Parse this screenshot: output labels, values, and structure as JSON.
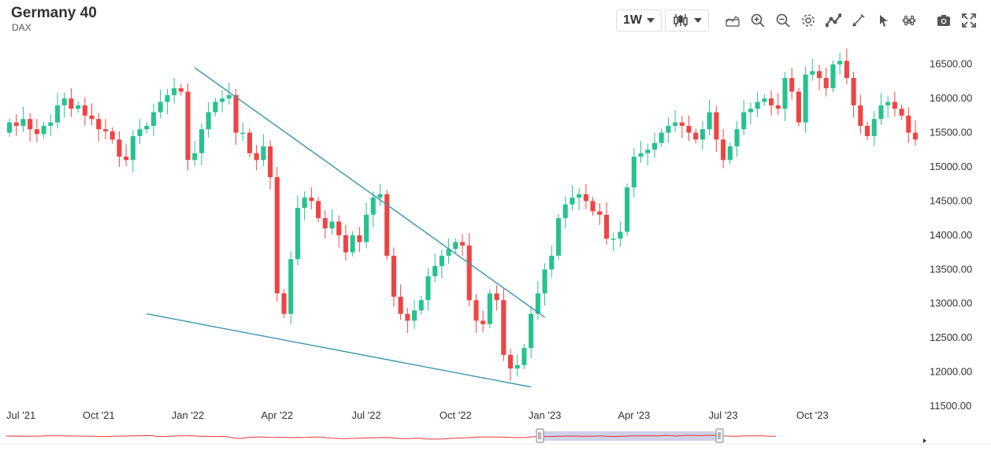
{
  "header": {
    "title": "Germany 40",
    "subtitle": "DAX"
  },
  "toolbar": {
    "interval_label": "1W",
    "chart_type_icon": "candlestick-icon",
    "icons": [
      "area-chart-icon",
      "zoom-in-icon",
      "zoom-out-icon",
      "gear-icon",
      "line-tool-icon",
      "pencil-icon",
      "cursor-icon",
      "network-icon",
      "camera-icon",
      "fullscreen-icon"
    ]
  },
  "colors": {
    "up": "#26c28f",
    "down": "#ef4444",
    "trendline": "#3a94b0",
    "navigator_line": "#e33",
    "navigator_fill": "#c7cde8"
  },
  "chart_data": {
    "type": "candlestick",
    "title": "",
    "xlabel": "",
    "ylabel": "",
    "y_ticks": [
      "11500.00",
      "12000.00",
      "12500.00",
      "13000.00",
      "13500.00",
      "14000.00",
      "14500.00",
      "15000.00",
      "15500.00",
      "16000.00",
      "16500.00"
    ],
    "ylim": [
      11500,
      16750
    ],
    "x_ticks": [
      "Jul '21",
      "Oct '21",
      "Jan '22",
      "Apr '22",
      "Jul '22",
      "Oct '22",
      "Jan '23",
      "Apr '23",
      "Jul '23",
      "Oct '23"
    ],
    "x_tick_weeks": [
      0,
      13,
      26,
      39,
      52,
      65,
      78,
      91,
      104,
      117
    ],
    "grid": false,
    "candles_close": [
      15650,
      15600,
      15700,
      15550,
      15480,
      15600,
      15650,
      15900,
      16000,
      15850,
      15900,
      15750,
      15700,
      15550,
      15520,
      15400,
      15150,
      15100,
      15450,
      15550,
      15600,
      15800,
      15950,
      16050,
      16150,
      16100,
      15100,
      15200,
      15550,
      15800,
      15950,
      16000,
      16050,
      15500,
      15500,
      15200,
      15100,
      15300,
      14850,
      13150,
      12850,
      13650,
      14400,
      14550,
      14500,
      14250,
      14100,
      14200,
      14000,
      13750,
      14000,
      13900,
      14300,
      14550,
      14600,
      13700,
      13100,
      12850,
      12750,
      12900,
      13050,
      13400,
      13550,
      13700,
      13800,
      13900,
      13850,
      13050,
      12750,
      12700,
      13150,
      13050,
      12250,
      12050,
      12100,
      12350,
      12850,
      13150,
      13500,
      13700,
      14250,
      14450,
      14550,
      14600,
      14500,
      14350,
      14300,
      13950,
      13950,
      14050,
      14700,
      15150,
      15200,
      15250,
      15350,
      15500,
      15600,
      15650,
      15600,
      15500,
      15400,
      15550,
      15800,
      15400,
      15100,
      15300,
      15550,
      15800,
      15850,
      15950,
      16000,
      15900,
      15850,
      16300,
      16100,
      15650,
      16350,
      16400,
      16300,
      16150,
      16500,
      16550,
      16300,
      15900,
      15600,
      15450,
      15700,
      15900,
      15950,
      15850,
      15750,
      15500,
      15400
    ],
    "candles_open": [
      15500,
      15650,
      15600,
      15700,
      15550,
      15480,
      15600,
      15650,
      15900,
      16000,
      15850,
      15900,
      15750,
      15700,
      15550,
      15520,
      15400,
      15150,
      15100,
      15450,
      15550,
      15600,
      15800,
      15950,
      16050,
      16150,
      16100,
      15100,
      15200,
      15550,
      15800,
      15950,
      16000,
      16050,
      15500,
      15500,
      15200,
      15100,
      15300,
      14850,
      13150,
      12850,
      13650,
      14400,
      14550,
      14500,
      14250,
      14100,
      14200,
      14000,
      13750,
      14000,
      13900,
      14300,
      14550,
      14600,
      13700,
      13100,
      12850,
      12750,
      12900,
      13050,
      13400,
      13550,
      13700,
      13800,
      13900,
      13850,
      13050,
      12750,
      12700,
      13150,
      13050,
      12250,
      12050,
      12100,
      12350,
      12850,
      13150,
      13500,
      13700,
      14250,
      14450,
      14550,
      14600,
      14500,
      14350,
      14300,
      13950,
      13950,
      14050,
      14700,
      15150,
      15200,
      15250,
      15350,
      15500,
      15600,
      15650,
      15600,
      15500,
      15400,
      15550,
      15800,
      15400,
      15100,
      15300,
      15550,
      15800,
      15850,
      15950,
      16000,
      15900,
      15850,
      16300,
      16100,
      15650,
      16350,
      16400,
      16300,
      16150,
      16500,
      16550,
      16300,
      15900,
      15600,
      15450,
      15700,
      15900,
      15950,
      15850,
      15750,
      15500
    ],
    "trendlines": [
      {
        "from": [
          27,
          16450
        ],
        "to": [
          78,
          12800
        ]
      },
      {
        "from": [
          20,
          12850
        ],
        "to": [
          76,
          11780
        ]
      }
    ]
  }
}
